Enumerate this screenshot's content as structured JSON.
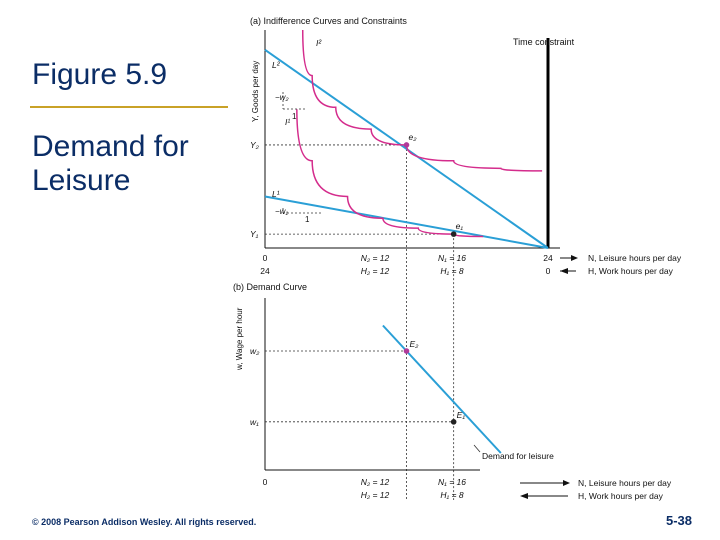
{
  "slide": {
    "title": "Figure 5.9",
    "subtitle": "Demand for\nLeisure",
    "footer": "© 2008 Pearson Addison Wesley. All rights reserved.",
    "page_number": "5-38"
  },
  "colors": {
    "title": "#0b2d66",
    "rule": "#c9a227",
    "indifference_curve": "#d42c8c",
    "budget_line": "#2a9fd6",
    "demand_curve": "#2a9fd6",
    "point": "#222222",
    "point_e2": "#b03a9a"
  },
  "chart_data": [
    {
      "type": "line",
      "title": "(a) Indifference Curves and Constraints",
      "ylabel": "Y, Goods per day",
      "xlabel_top": "N, Leisure hours per day",
      "xlabel_bottom": "H, Work hours per day",
      "xlim": [
        0,
        24
      ],
      "ylim": [
        0,
        110
      ],
      "x_ticks_top": [
        "0",
        "N₂ = 12",
        "N₁ = 16",
        "24"
      ],
      "x_ticks_bottom": [
        "24",
        "H₂ = 12",
        "H₁ = 8",
        "0"
      ],
      "y_ticks": [
        "Y₂",
        "Y₁"
      ],
      "y_tick_values": [
        52,
        7
      ],
      "annotations": {
        "time_constraint": "Time constraint",
        "slope_w2": "−w₂",
        "slope_w1": "−w₁",
        "run": "1"
      },
      "series": [
        {
          "name": "L²",
          "kind": "budget",
          "x": [
            0,
            24
          ],
          "y": [
            100,
            0
          ]
        },
        {
          "name": "L¹",
          "kind": "budget",
          "x": [
            0,
            24
          ],
          "y": [
            26,
            0
          ]
        },
        {
          "name": "I²",
          "kind": "indifference",
          "x": [
            3.2,
            4,
            6,
            9,
            12,
            16,
            20,
            23.5
          ],
          "y": [
            110,
            87,
            71,
            60,
            52,
            44,
            40.2,
            38.9
          ]
        },
        {
          "name": "I¹",
          "kind": "indifference",
          "x": [
            2.7,
            4,
            7,
            10,
            13,
            16,
            18.5
          ],
          "y": [
            70,
            44,
            26,
            15,
            10,
            7,
            5.8
          ]
        }
      ],
      "points": [
        {
          "name": "e₂",
          "x": 12,
          "y": 52
        },
        {
          "name": "e₁",
          "x": 16,
          "y": 7
        }
      ]
    },
    {
      "type": "line",
      "title": "(b) Demand Curve",
      "ylabel": "w, Wage per hour",
      "xlabel_top": "N, Leisure hours per day",
      "xlabel_bottom": "H, Work hours per day",
      "xlim": [
        0,
        24
      ],
      "ylim": [
        0,
        30
      ],
      "x_ticks_top": [
        "0",
        "N₂ = 12",
        "N₁ = 16"
      ],
      "x_ticks_bottom": [
        "H₂ = 12",
        "H₁ = 8"
      ],
      "y_ticks": [
        "w₂",
        "w₁"
      ],
      "y_tick_values": [
        21,
        8.5
      ],
      "series": [
        {
          "name": "Demand for leisure",
          "x": [
            10,
            20
          ],
          "y": [
            25.5,
            3
          ]
        }
      ],
      "points": [
        {
          "name": "E₂",
          "x": 12,
          "y": 21
        },
        {
          "name": "E₁",
          "x": 16,
          "y": 8.5
        }
      ]
    }
  ]
}
